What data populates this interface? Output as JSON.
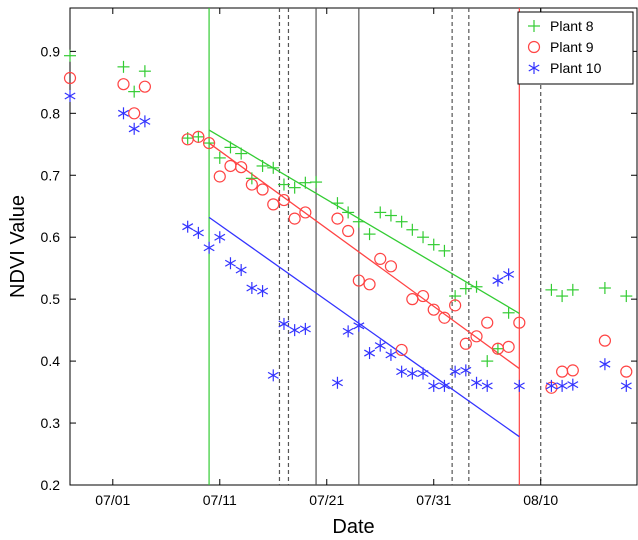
{
  "chart_data": {
    "type": "scatter",
    "title": "",
    "xlabel": "Date",
    "ylabel": "NDVI Value",
    "x_start_date": "06/27",
    "xlim": [
      "06/27",
      "08/19"
    ],
    "ylim": [
      0.2,
      0.97
    ],
    "x_ticks": [
      "07/01",
      "07/11",
      "07/21",
      "07/31",
      "08/10"
    ],
    "y_ticks": [
      "0.2",
      "0.3",
      "0.4",
      "0.5",
      "0.6",
      "0.7",
      "0.8",
      "0.9"
    ],
    "grid": false,
    "legend_position": "top-right",
    "series": [
      {
        "name": "Plant 8",
        "marker": "plus",
        "color": "#33cc33",
        "points": [
          [
            "06/27",
            0.893
          ],
          [
            "07/02",
            0.875
          ],
          [
            "07/03",
            0.835
          ],
          [
            "07/04",
            0.868
          ],
          [
            "07/08",
            0.76
          ],
          [
            "07/09",
            0.762
          ],
          [
            "07/10",
            0.752
          ],
          [
            "07/11",
            0.728
          ],
          [
            "07/12",
            0.745
          ],
          [
            "07/13",
            0.735
          ],
          [
            "07/14",
            0.695
          ],
          [
            "07/15",
            0.715
          ],
          [
            "07/16",
            0.712
          ],
          [
            "07/17",
            0.685
          ],
          [
            "07/18",
            0.68
          ],
          [
            "07/19",
            0.688
          ],
          [
            "07/20",
            0.689
          ],
          [
            "07/22",
            0.655
          ],
          [
            "07/23",
            0.64
          ],
          [
            "07/24",
            0.625
          ],
          [
            "07/25",
            0.605
          ],
          [
            "07/26",
            0.64
          ],
          [
            "07/27",
            0.635
          ],
          [
            "07/28",
            0.625
          ],
          [
            "07/29",
            0.612
          ],
          [
            "07/30",
            0.6
          ],
          [
            "07/31",
            0.588
          ],
          [
            "08/01",
            0.578
          ],
          [
            "08/02",
            0.505
          ],
          [
            "08/03",
            0.517
          ],
          [
            "08/04",
            0.52
          ],
          [
            "08/05",
            0.4
          ],
          [
            "08/06",
            0.42
          ],
          [
            "08/07",
            0.478
          ],
          [
            "08/11",
            0.515
          ],
          [
            "08/12",
            0.505
          ],
          [
            "08/13",
            0.515
          ],
          [
            "08/16",
            0.518
          ],
          [
            "08/18",
            0.505
          ]
        ]
      },
      {
        "name": "Plant 9",
        "marker": "circle",
        "color": "#ff4444",
        "points": [
          [
            "06/27",
            0.857
          ],
          [
            "07/02",
            0.847
          ],
          [
            "07/03",
            0.8
          ],
          [
            "07/04",
            0.843
          ],
          [
            "07/08",
            0.758
          ],
          [
            "07/09",
            0.762
          ],
          [
            "07/10",
            0.752
          ],
          [
            "07/11",
            0.698
          ],
          [
            "07/12",
            0.715
          ],
          [
            "07/13",
            0.713
          ],
          [
            "07/14",
            0.685
          ],
          [
            "07/15",
            0.677
          ],
          [
            "07/16",
            0.653
          ],
          [
            "07/17",
            0.66
          ],
          [
            "07/18",
            0.63
          ],
          [
            "07/19",
            0.64
          ],
          [
            "07/22",
            0.63
          ],
          [
            "07/23",
            0.61
          ],
          [
            "07/24",
            0.53
          ],
          [
            "07/25",
            0.524
          ],
          [
            "07/26",
            0.565
          ],
          [
            "07/27",
            0.553
          ],
          [
            "07/28",
            0.418
          ],
          [
            "07/29",
            0.5
          ],
          [
            "07/30",
            0.505
          ],
          [
            "07/31",
            0.483
          ],
          [
            "08/01",
            0.47
          ],
          [
            "08/02",
            0.49
          ],
          [
            "08/03",
            0.428
          ],
          [
            "08/04",
            0.44
          ],
          [
            "08/05",
            0.462
          ],
          [
            "08/06",
            0.42
          ],
          [
            "08/07",
            0.423
          ],
          [
            "08/08",
            0.462
          ],
          [
            "08/11",
            0.357
          ],
          [
            "08/12",
            0.383
          ],
          [
            "08/13",
            0.385
          ],
          [
            "08/16",
            0.433
          ],
          [
            "08/18",
            0.383
          ]
        ]
      },
      {
        "name": "Plant 10",
        "marker": "asterisk",
        "color": "#3333ff",
        "points": [
          [
            "06/27",
            0.828
          ],
          [
            "07/02",
            0.8
          ],
          [
            "07/03",
            0.775
          ],
          [
            "07/04",
            0.787
          ],
          [
            "07/08",
            0.617
          ],
          [
            "07/09",
            0.607
          ],
          [
            "07/10",
            0.583
          ],
          [
            "07/11",
            0.6
          ],
          [
            "07/12",
            0.558
          ],
          [
            "07/13",
            0.547
          ],
          [
            "07/14",
            0.518
          ],
          [
            "07/15",
            0.513
          ],
          [
            "07/16",
            0.377
          ],
          [
            "07/17",
            0.46
          ],
          [
            "07/18",
            0.45
          ],
          [
            "07/19",
            0.452
          ],
          [
            "07/22",
            0.365
          ],
          [
            "07/23",
            0.448
          ],
          [
            "07/24",
            0.457
          ],
          [
            "07/25",
            0.413
          ],
          [
            "07/26",
            0.425
          ],
          [
            "07/27",
            0.41
          ],
          [
            "07/28",
            0.383
          ],
          [
            "07/29",
            0.38
          ],
          [
            "07/30",
            0.38
          ],
          [
            "07/31",
            0.36
          ],
          [
            "08/01",
            0.36
          ],
          [
            "08/02",
            0.383
          ],
          [
            "08/03",
            0.385
          ],
          [
            "08/04",
            0.365
          ],
          [
            "08/05",
            0.36
          ],
          [
            "08/06",
            0.53
          ],
          [
            "08/07",
            0.54
          ],
          [
            "08/08",
            0.36
          ],
          [
            "08/11",
            0.36
          ],
          [
            "08/12",
            0.36
          ],
          [
            "08/13",
            0.362
          ],
          [
            "08/16",
            0.395
          ],
          [
            "08/18",
            0.36
          ]
        ]
      }
    ],
    "trend_lines": [
      {
        "series": "Plant 8",
        "color": "#33cc33",
        "from": [
          "07/10",
          0.773
        ],
        "to": [
          "08/08",
          0.477
        ]
      },
      {
        "series": "Plant 9",
        "color": "#ff4444",
        "from": [
          "07/10",
          0.752
        ],
        "to": [
          "08/08",
          0.388
        ]
      },
      {
        "series": "Plant 10",
        "color": "#3333ff",
        "from": [
          "07/10",
          0.632
        ],
        "to": [
          "08/08",
          0.278
        ]
      }
    ],
    "vertical_lines": [
      {
        "x": "07/10",
        "color": "#33cc33",
        "style": "solid"
      },
      {
        "x": "07/17",
        "color": "#555555",
        "style": "dashed"
      },
      {
        "x": "07/17",
        "color": "#555555",
        "style": "dashed"
      },
      {
        "x": "07/20",
        "color": "#555555",
        "style": "solid"
      },
      {
        "x": "07/24",
        "color": "#555555",
        "style": "solid"
      },
      {
        "x": "08/02",
        "color": "#555555",
        "style": "dashed"
      },
      {
        "x": "08/03",
        "color": "#555555",
        "style": "dashed"
      },
      {
        "x": "08/08",
        "color": "#ff4444",
        "style": "solid"
      },
      {
        "x": "08/10",
        "color": "#555555",
        "style": "dashed"
      }
    ]
  }
}
